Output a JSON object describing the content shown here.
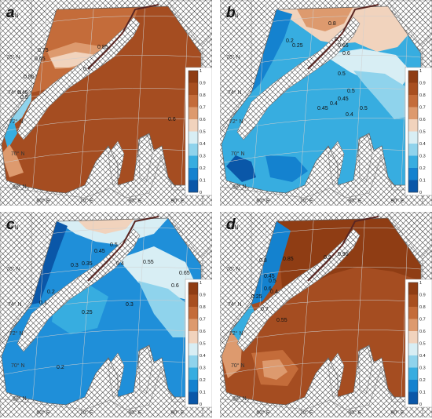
{
  "lat_labels": [
    "78° N",
    "76° N",
    "74° N",
    "72° N",
    "70° N",
    "68° N"
  ],
  "lon_labels": [
    "60° E",
    "70° E",
    "80° E",
    "90° E"
  ],
  "colorbar_ticks": [
    "1",
    "0.9",
    "0.8",
    "0.7",
    "0.6",
    "0.5",
    "0.4",
    "0.3",
    "0.2",
    "0.1",
    "0"
  ],
  "colorbar_colors": [
    "#8f3d14",
    "#a84f20",
    "#c46c3a",
    "#dd9a6e",
    "#f1d3bd",
    "#d8eef4",
    "#8fd3ec",
    "#37ade0",
    "#1482cf",
    "#0a57a8"
  ],
  "panels": [
    {
      "label": "a",
      "contours": [
        "0.85",
        "0.75",
        "0.65",
        "0.7",
        "0.55",
        "0.45",
        "0.5",
        "0.6"
      ]
    },
    {
      "label": "b",
      "contours": [
        "0.8",
        "0.7",
        "0.65",
        "0.6",
        "0.5",
        "0.45",
        "0.4",
        "0.5",
        "0.5",
        "0.4",
        "0.45",
        "0.2",
        "0.25"
      ]
    },
    {
      "label": "c",
      "contours": [
        "0.45",
        "0.5",
        "0.55",
        "0.6",
        "0.4",
        "0.35",
        "0.3",
        "0.2",
        "0.1",
        "0.25",
        "0.65",
        "0.3",
        "0.2"
      ]
    },
    {
      "label": "d",
      "contours": [
        "0.8",
        "0.85",
        "0.9",
        "0.95",
        "0.45",
        "0.5",
        "0.6",
        "0.4",
        "0.25",
        "0.7",
        "0.55"
      ]
    }
  ]
}
